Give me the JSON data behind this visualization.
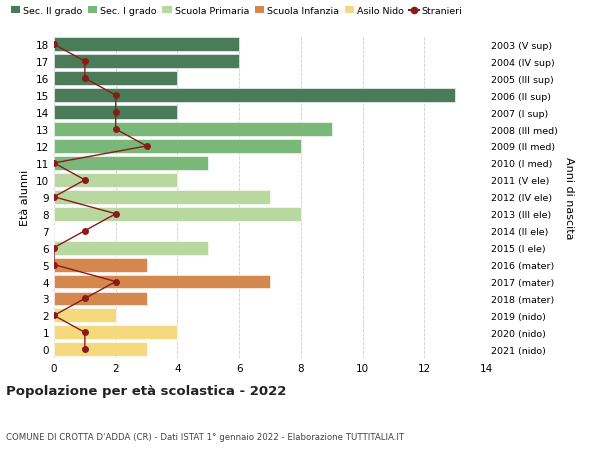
{
  "ages": [
    18,
    17,
    16,
    15,
    14,
    13,
    12,
    11,
    10,
    9,
    8,
    7,
    6,
    5,
    4,
    3,
    2,
    1,
    0
  ],
  "anni_nascita": [
    "2003 (V sup)",
    "2004 (IV sup)",
    "2005 (III sup)",
    "2006 (II sup)",
    "2007 (I sup)",
    "2008 (III med)",
    "2009 (II med)",
    "2010 (I med)",
    "2011 (V ele)",
    "2012 (IV ele)",
    "2013 (III ele)",
    "2014 (II ele)",
    "2015 (I ele)",
    "2016 (mater)",
    "2017 (mater)",
    "2018 (mater)",
    "2019 (nido)",
    "2020 (nido)",
    "2021 (nido)"
  ],
  "bar_values": [
    6,
    6,
    4,
    13,
    4,
    9,
    8,
    5,
    4,
    7,
    8,
    0,
    5,
    3,
    7,
    3,
    2,
    4,
    3
  ],
  "bar_colors": [
    "#4a7c59",
    "#4a7c59",
    "#4a7c59",
    "#4a7c59",
    "#4a7c59",
    "#7ab87a",
    "#7ab87a",
    "#7ab87a",
    "#b8d8a0",
    "#b8d8a0",
    "#b8d8a0",
    "#b8d8a0",
    "#b8d8a0",
    "#d4884e",
    "#d4884e",
    "#d4884e",
    "#f5d97e",
    "#f5d97e",
    "#f5d97e"
  ],
  "stranieri": [
    0,
    1,
    1,
    2,
    2,
    2,
    3,
    0,
    1,
    0,
    2,
    1,
    0,
    0,
    2,
    1,
    0,
    1,
    1
  ],
  "stranieri_color": "#8b1a1a",
  "legend_labels": [
    "Sec. II grado",
    "Sec. I grado",
    "Scuola Primaria",
    "Scuola Infanzia",
    "Asilo Nido",
    "Stranieri"
  ],
  "legend_colors": [
    "#4a7c59",
    "#7ab87a",
    "#b8d8a0",
    "#d4884e",
    "#f5d97e",
    "#8b1a1a"
  ],
  "ylabel_left": "Età alunni",
  "ylabel_right": "Anni di nascita",
  "title": "Popolazione per età scolastica - 2022",
  "subtitle": "COMUNE DI CROTTA D'ADDA (CR) - Dati ISTAT 1° gennaio 2022 - Elaborazione TUTTITALIA.IT",
  "xlim": [
    0,
    14
  ],
  "background_color": "#ffffff",
  "grid_color": "#cccccc"
}
